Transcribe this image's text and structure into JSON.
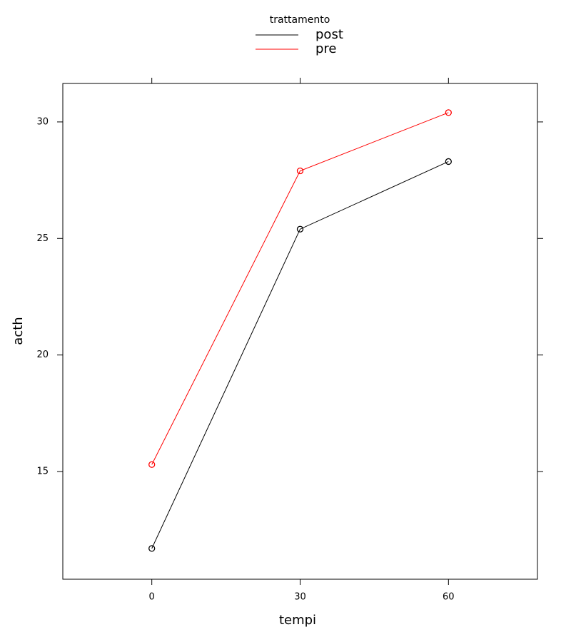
{
  "chart_data": {
    "type": "line",
    "legend_title": "trattamento",
    "x": [
      0,
      30,
      60
    ],
    "series": [
      {
        "name": "post",
        "color": "#000000",
        "values": [
          11.7,
          25.4,
          28.3
        ]
      },
      {
        "name": "pre",
        "color": "#ff0000",
        "values": [
          15.3,
          27.9,
          30.4
        ]
      }
    ],
    "xlabel": "tempi",
    "ylabel": "acth",
    "xlim": [
      -18,
      78
    ],
    "xticks": [
      0,
      30,
      60
    ],
    "ylim": [
      10.38,
      31.65
    ],
    "yticks": [
      15,
      20,
      25,
      30
    ],
    "markers": "open-circle"
  }
}
